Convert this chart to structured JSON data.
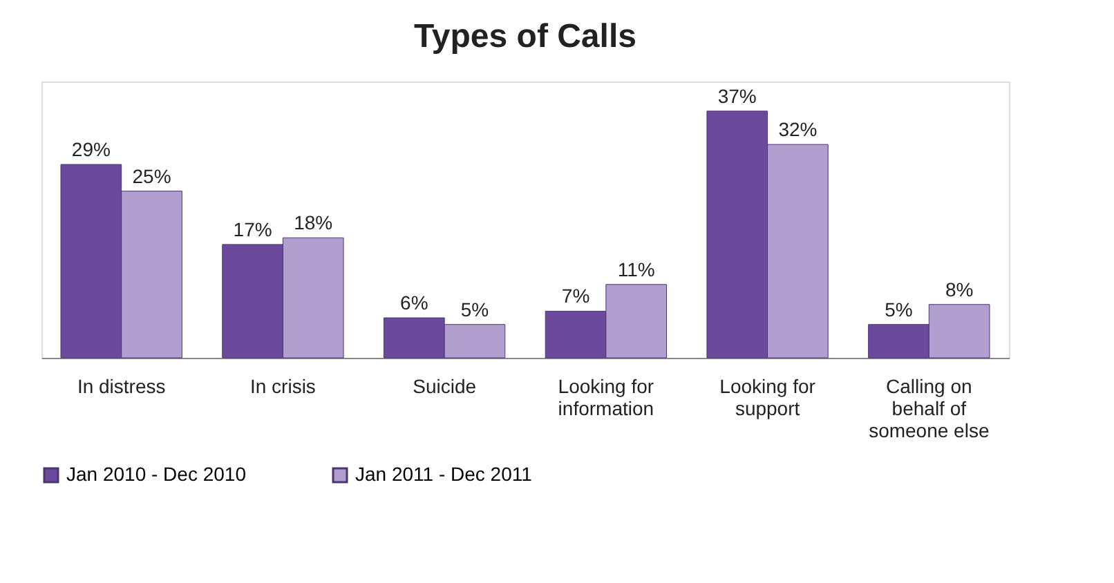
{
  "chart_data": {
    "type": "bar",
    "title": "Types of Calls",
    "categories": [
      "In distress",
      "In crisis",
      "Suicide",
      "Looking for information",
      "Looking for support",
      "Calling on behalf of someone else"
    ],
    "series": [
      {
        "name": "Jan 2010 - Dec 2010",
        "color": "#6b4a9e",
        "values": [
          29,
          17,
          6,
          7,
          37,
          5
        ],
        "value_labels": [
          "29%",
          "17%",
          "6%",
          "7%",
          "37%",
          "5%"
        ]
      },
      {
        "name": "Jan 2011 - Dec 2011",
        "color": "#b1a0cf",
        "values": [
          25,
          18,
          5,
          11,
          32,
          8
        ],
        "value_labels": [
          "25%",
          "18%",
          "5%",
          "11%",
          "32%",
          "8%"
        ]
      }
    ],
    "legend": "bottom",
    "grid": false
  }
}
